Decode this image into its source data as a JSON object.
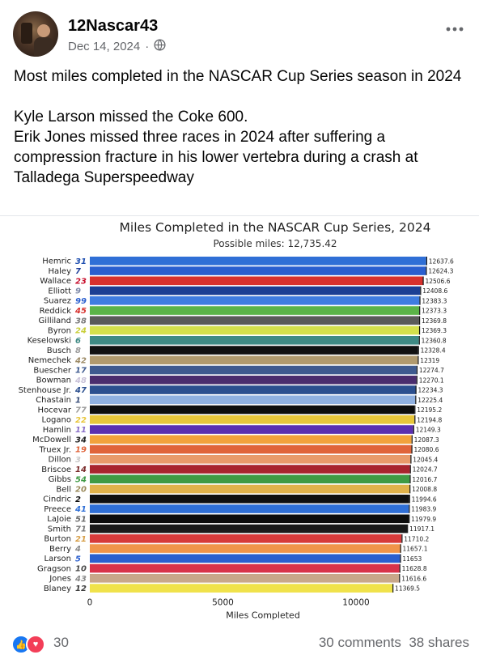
{
  "post": {
    "author": "12Nascar43",
    "date": "Dec 14, 2024",
    "separator": "·",
    "more_icon": "more-dots-icon",
    "text_lines": [
      "Most miles completed in the NASCAR Cup Series season in 2024",
      "",
      "Kyle Larson missed the Coke 600.",
      "Erik Jones missed three races in 2024 after suffering a compression fracture in his lower vertebra during a crash at Talladega Superspeedway"
    ]
  },
  "engagement": {
    "reaction_count": "30",
    "comments": "30 comments",
    "shares": "38 shares"
  },
  "chart_data": {
    "type": "bar",
    "orientation": "horizontal",
    "title": "Miles Completed in the NASCAR Cup Series, 2024",
    "subtitle": "Possible miles: 12,735.42",
    "xlabel": "Miles Completed",
    "xlim": [
      0,
      12735.42
    ],
    "xticks": [
      "0",
      "5000",
      "10000"
    ],
    "grid": false,
    "rows": [
      {
        "driver": "Hemric",
        "number": "31",
        "value": 12637.6,
        "label": "12637.6",
        "color": "#2f6fd6",
        "num_color": "#1f4fb0"
      },
      {
        "driver": "Haley",
        "number": "7",
        "value": 12624.3,
        "label": "12624.3",
        "color": "#2a5fcf",
        "num_color": "#1f3e9a"
      },
      {
        "driver": "Wallace",
        "number": "23",
        "value": 12506.6,
        "label": "12506.6",
        "color": "#d7322e",
        "num_color": "#c8102e"
      },
      {
        "driver": "Elliott",
        "number": "9",
        "value": 12408.6,
        "label": "12408.6",
        "color": "#1c3f94",
        "num_color": "#7f8aa8"
      },
      {
        "driver": "Suarez",
        "number": "99",
        "value": 12383.3,
        "label": "12383.3",
        "color": "#3f7ce0",
        "num_color": "#2a5fcf"
      },
      {
        "driver": "Reddick",
        "number": "45",
        "value": 12373.3,
        "label": "12373.3",
        "color": "#5bb348",
        "num_color": "#d7322e"
      },
      {
        "driver": "Gilliland",
        "number": "38",
        "value": 12369.8,
        "label": "12369.8",
        "color": "#5a5a5a",
        "num_color": "#7a7a7a"
      },
      {
        "driver": "Byron",
        "number": "24",
        "value": 12369.3,
        "label": "12369.3",
        "color": "#d4e04c",
        "num_color": "#c9cf3a"
      },
      {
        "driver": "Keselowski",
        "number": "6",
        "value": 12360.8,
        "label": "12360.8",
        "color": "#3f8a84",
        "num_color": "#3f8a84"
      },
      {
        "driver": "Busch",
        "number": "8",
        "value": 12328.4,
        "label": "12328.4",
        "color": "#111111",
        "num_color": "#9a9a9a"
      },
      {
        "driver": "Nemechek",
        "number": "42",
        "value": 12319.0,
        "label": "12319",
        "color": "#b09a6e",
        "num_color": "#9c8a66"
      },
      {
        "driver": "Buescher",
        "number": "17",
        "value": 12274.7,
        "label": "12274.7",
        "color": "#3e5a8f",
        "num_color": "#3e5a8f"
      },
      {
        "driver": "Bowman",
        "number": "48",
        "value": 12270.1,
        "label": "12270.1",
        "color": "#4a2d6e",
        "num_color": "#c9c2d8"
      },
      {
        "driver": "Stenhouse Jr.",
        "number": "47",
        "value": 12234.3,
        "label": "12234.3",
        "color": "#2b4f8f",
        "num_color": "#2b4f8f"
      },
      {
        "driver": "Chastain",
        "number": "1",
        "value": 12225.4,
        "label": "12225.4",
        "color": "#8fb0e0",
        "num_color": "#3a4f7a"
      },
      {
        "driver": "Hocevar",
        "number": "77",
        "value": 12195.2,
        "label": "12195.2",
        "color": "#0d0d0d",
        "num_color": "#9a9a9a"
      },
      {
        "driver": "Logano",
        "number": "22",
        "value": 12194.8,
        "label": "12194.8",
        "color": "#e8c63a",
        "num_color": "#e8c63a"
      },
      {
        "driver": "Hamlin",
        "number": "11",
        "value": 12149.3,
        "label": "12149.3",
        "color": "#5a2fb0",
        "num_color": "#8a70c8"
      },
      {
        "driver": "McDowell",
        "number": "34",
        "value": 12087.3,
        "label": "12087.3",
        "color": "#f2a23c",
        "num_color": "#222222"
      },
      {
        "driver": "Truex Jr.",
        "number": "19",
        "value": 12080.6,
        "label": "12080.6",
        "color": "#e0643a",
        "num_color": "#e0643a"
      },
      {
        "driver": "Dillon",
        "number": "3",
        "value": 12045.4,
        "label": "12045.4",
        "color": "#e89a6a",
        "num_color": "#c8c8c8"
      },
      {
        "driver": "Briscoe",
        "number": "14",
        "value": 12024.7,
        "label": "12024.7",
        "color": "#a8242e",
        "num_color": "#7a2a2a"
      },
      {
        "driver": "Gibbs",
        "number": "54",
        "value": 12016.7,
        "label": "12016.7",
        "color": "#3f9a44",
        "num_color": "#3f9a44"
      },
      {
        "driver": "Bell",
        "number": "20",
        "value": 12008.8,
        "label": "12008.8",
        "color": "#e0b24a",
        "num_color": "#9a8a5a"
      },
      {
        "driver": "Cindric",
        "number": "2",
        "value": 11994.6,
        "label": "11994.6",
        "color": "#101010",
        "num_color": "#101010"
      },
      {
        "driver": "Preece",
        "number": "41",
        "value": 11983.9,
        "label": "11983.9",
        "color": "#2f6fd6",
        "num_color": "#2f6fd6"
      },
      {
        "driver": "LaJoie",
        "number": "51",
        "value": 11979.9,
        "label": "11979.9",
        "color": "#0d0d0d",
        "num_color": "#6a6a6a"
      },
      {
        "driver": "Smith",
        "number": "71",
        "value": 11917.1,
        "label": "11917.1",
        "color": "#1a1a1a",
        "num_color": "#7a7a7a"
      },
      {
        "driver": "Burton",
        "number": "21",
        "value": 11710.2,
        "label": "11710.2",
        "color": "#d63a3a",
        "num_color": "#d8a04a"
      },
      {
        "driver": "Berry",
        "number": "4",
        "value": 11657.1,
        "label": "11657.1",
        "color": "#f0944a",
        "num_color": "#8a8a8a"
      },
      {
        "driver": "Larson",
        "number": "5",
        "value": 11653.0,
        "label": "11653",
        "color": "#2a5fcf",
        "num_color": "#2a5fcf"
      },
      {
        "driver": "Gragson",
        "number": "10",
        "value": 11628.8,
        "label": "11628.8",
        "color": "#d8334a",
        "num_color": "#4a4a4a"
      },
      {
        "driver": "Jones",
        "number": "43",
        "value": 11616.6,
        "label": "11616.6",
        "color": "#c8a78a",
        "num_color": "#8a8a8a"
      },
      {
        "driver": "Blaney",
        "number": "12",
        "value": 11369.5,
        "label": "11369.5",
        "color": "#f0e24a",
        "num_color": "#3a3a3a"
      }
    ]
  }
}
